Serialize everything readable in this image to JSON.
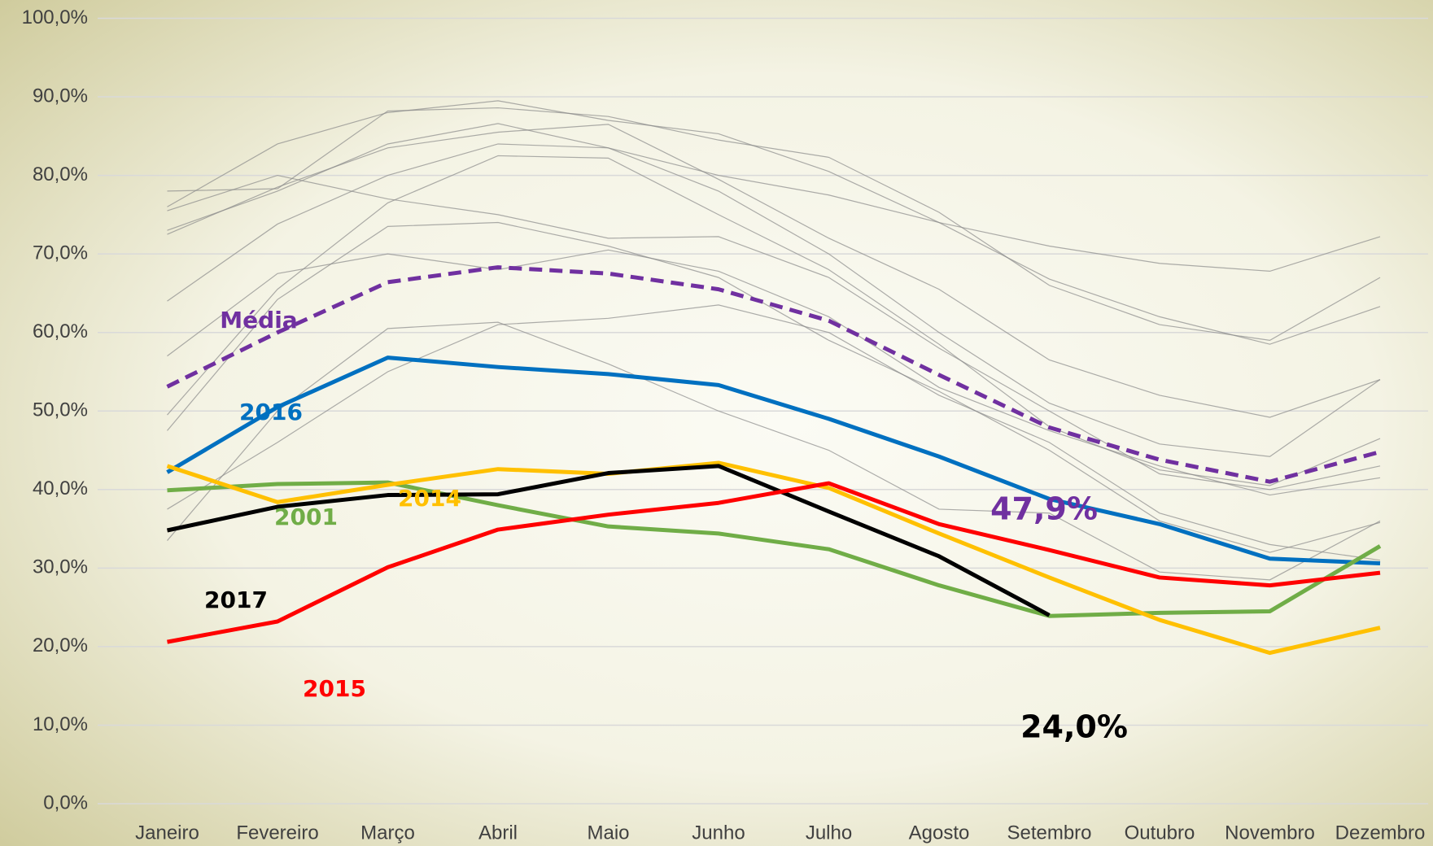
{
  "chart_data": {
    "type": "line",
    "categories": [
      "Janeiro",
      "Fevereiro",
      "Março",
      "Abril",
      "Maio",
      "Junho",
      "Julho",
      "Agosto",
      "Setembro",
      "Outubro",
      "Novembro",
      "Dezembro"
    ],
    "ylim": [
      0,
      100
    ],
    "yticks": [
      {
        "value": 0,
        "label": "0,0%"
      },
      {
        "value": 10,
        "label": "10,0%"
      },
      {
        "value": 20,
        "label": "20,0%"
      },
      {
        "value": 30,
        "label": "30,0%"
      },
      {
        "value": 40,
        "label": "40,0%"
      },
      {
        "value": 50,
        "label": "50,0%"
      },
      {
        "value": 60,
        "label": "60,0%"
      },
      {
        "value": 70,
        "label": "70,0%"
      },
      {
        "value": 80,
        "label": "80,0%"
      },
      {
        "value": 90,
        "label": "90,0%"
      },
      {
        "value": 100,
        "label": "100,0%"
      }
    ],
    "grid": true,
    "background_series": {
      "color": "#8a8a8a",
      "lines": [
        [
          78.0,
          78.3,
          88.2,
          88.6,
          87.5,
          84.5,
          82.3,
          75.3,
          66.0,
          61.0,
          59.0,
          67.0
        ],
        [
          76.0,
          84.0,
          88.0,
          89.5,
          87.0,
          85.3,
          80.5,
          74.0,
          66.8,
          62.0,
          58.5,
          63.3
        ],
        [
          73.0,
          78.0,
          84.0,
          86.6,
          83.5,
          78.0,
          70.0,
          60.0,
          51.0,
          45.8,
          44.2,
          54.0
        ],
        [
          72.5,
          78.5,
          83.5,
          85.5,
          86.5,
          79.5,
          72.0,
          65.5,
          56.5,
          52.0,
          49.2,
          54.0
        ],
        [
          64.0,
          73.8,
          80.0,
          84.0,
          83.5,
          80.0,
          77.5,
          74.0,
          71.0,
          68.8,
          67.8,
          72.2
        ],
        [
          57.0,
          67.5,
          70.0,
          68.0,
          70.5,
          67.8,
          62.0,
          53.0,
          47.5,
          43.0,
          39.3,
          41.5
        ],
        [
          47.5,
          64.2,
          73.5,
          74.0,
          71.0,
          67.0,
          59.0,
          52.5,
          45.0,
          36.0,
          32.0,
          35.8
        ],
        [
          33.5,
          50.0,
          60.5,
          61.3,
          56.0,
          50.0,
          45.0,
          37.5,
          37.0,
          29.5,
          28.5,
          36.0
        ],
        [
          37.5,
          46.0,
          55.0,
          61.0,
          61.8,
          63.5,
          60.0,
          52.0,
          46.0,
          37.0,
          33.0,
          31.0
        ],
        [
          75.5,
          80.0,
          77.0,
          75.0,
          72.0,
          72.2,
          67.0,
          58.0,
          50.0,
          42.0,
          40.0,
          43.0
        ],
        [
          49.5,
          65.5,
          76.5,
          82.5,
          82.2,
          75.0,
          68.0,
          58.5,
          48.0,
          42.5,
          40.5,
          46.5
        ]
      ]
    },
    "series": [
      {
        "name": "Média",
        "color": "#7030a0",
        "dashed": true,
        "values": [
          53.1,
          60.0,
          66.4,
          68.3,
          67.5,
          65.5,
          61.5,
          54.6,
          47.9,
          43.8,
          41.0,
          44.8
        ]
      },
      {
        "name": "2016",
        "color": "#0070c0",
        "values": [
          42.2,
          50.5,
          56.8,
          55.6,
          54.7,
          53.3,
          49.0,
          44.2,
          38.8,
          35.6,
          31.2,
          30.6
        ]
      },
      {
        "name": "2001",
        "color": "#70ad47",
        "values": [
          39.9,
          40.7,
          40.9,
          38.0,
          35.3,
          34.4,
          32.4,
          27.8,
          23.9,
          24.3,
          24.5,
          32.8
        ]
      },
      {
        "name": "2014",
        "color": "#ffc000",
        "values": [
          43.0,
          38.4,
          40.6,
          42.6,
          42.0,
          43.4,
          40.2,
          34.4,
          28.8,
          23.4,
          19.2,
          22.4
        ]
      },
      {
        "name": "2017",
        "color": "#000000",
        "values": [
          34.8,
          37.8,
          39.3,
          39.4,
          42.1,
          43.0,
          37.2,
          31.5,
          24.0,
          null,
          null,
          null
        ]
      },
      {
        "name": "2015",
        "color": "#ff0000",
        "values": [
          20.6,
          23.2,
          30.1,
          34.9,
          36.8,
          38.3,
          40.8,
          35.6,
          32.3,
          28.8,
          27.8,
          29.4
        ]
      }
    ],
    "annotations": [
      {
        "text": "47,9%",
        "series": 0,
        "index": 8
      },
      {
        "text": "24,0%",
        "series": 4,
        "index": 8
      }
    ]
  }
}
